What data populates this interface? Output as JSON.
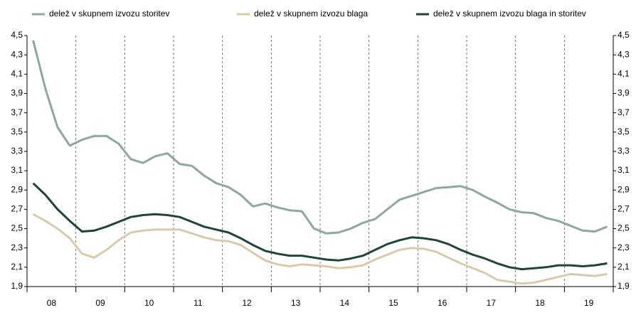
{
  "chart_data": {
    "type": "line",
    "categories": [
      "08",
      null,
      null,
      null,
      "09",
      null,
      null,
      null,
      "10",
      null,
      null,
      null,
      "11",
      null,
      null,
      null,
      "12",
      null,
      null,
      null,
      "13",
      null,
      null,
      null,
      "14",
      null,
      null,
      null,
      "15",
      null,
      null,
      null,
      "16",
      null,
      null,
      null,
      "17",
      null,
      null,
      null,
      "18",
      null,
      null,
      null,
      "19",
      null,
      null,
      null
    ],
    "series": [
      {
        "name": "delež v skupnem izvozu storitev",
        "color": "#8fa89c",
        "values": [
          4.45,
          3.95,
          3.55,
          3.36,
          3.42,
          3.46,
          3.46,
          3.38,
          3.22,
          3.18,
          3.25,
          3.28,
          3.17,
          3.15,
          3.05,
          2.97,
          2.93,
          2.85,
          2.73,
          2.76,
          2.72,
          2.69,
          2.68,
          2.5,
          2.45,
          2.46,
          2.5,
          2.56,
          2.6,
          2.7,
          2.8,
          2.84,
          2.88,
          2.92,
          2.93,
          2.94,
          2.9,
          2.83,
          2.77,
          2.7,
          2.67,
          2.66,
          2.61,
          2.58,
          2.53,
          2.48,
          2.47,
          2.52
        ]
      },
      {
        "name": "delež v skupnem izvozu blaga",
        "color": "#d8cbab",
        "values": [
          2.65,
          2.58,
          2.5,
          2.4,
          2.24,
          2.2,
          2.28,
          2.38,
          2.46,
          2.48,
          2.49,
          2.49,
          2.49,
          2.45,
          2.41,
          2.38,
          2.37,
          2.33,
          2.25,
          2.17,
          2.13,
          2.11,
          2.13,
          2.12,
          2.11,
          2.09,
          2.1,
          2.12,
          2.18,
          2.23,
          2.28,
          2.3,
          2.29,
          2.26,
          2.2,
          2.14,
          2.09,
          2.04,
          1.97,
          1.95,
          1.93,
          1.94,
          1.97,
          2.0,
          2.03,
          2.02,
          2.01,
          2.03
        ]
      },
      {
        "name": "delež v skupnem izvozu blaga in storitev",
        "color": "#1f4536",
        "values": [
          2.97,
          2.85,
          2.7,
          2.58,
          2.47,
          2.48,
          2.52,
          2.57,
          2.62,
          2.64,
          2.65,
          2.64,
          2.62,
          2.57,
          2.52,
          2.49,
          2.46,
          2.4,
          2.33,
          2.27,
          2.24,
          2.22,
          2.22,
          2.2,
          2.18,
          2.17,
          2.19,
          2.22,
          2.28,
          2.34,
          2.38,
          2.41,
          2.4,
          2.38,
          2.34,
          2.28,
          2.23,
          2.19,
          2.14,
          2.1,
          2.08,
          2.09,
          2.1,
          2.12,
          2.12,
          2.11,
          2.12,
          2.14
        ]
      }
    ],
    "ylim": [
      1.9,
      4.5
    ],
    "yticks": [
      {
        "value": 1.9,
        "label": "1,9"
      },
      {
        "value": 2.1,
        "label": "2,1"
      },
      {
        "value": 2.3,
        "label": "2,3"
      },
      {
        "value": 2.5,
        "label": "2,5"
      },
      {
        "value": 2.7,
        "label": "2,7"
      },
      {
        "value": 2.9,
        "label": "2,9"
      },
      {
        "value": 3.1,
        "label": "3,1"
      },
      {
        "value": 3.3,
        "label": "3,3"
      },
      {
        "value": 3.5,
        "label": "3,5"
      },
      {
        "value": 3.7,
        "label": "3,7"
      },
      {
        "value": 3.9,
        "label": "3,9"
      },
      {
        "value": 4.1,
        "label": "4,1"
      },
      {
        "value": 4.3,
        "label": "4,3"
      },
      {
        "value": 4.5,
        "label": "4,5"
      }
    ],
    "legend": "top"
  }
}
